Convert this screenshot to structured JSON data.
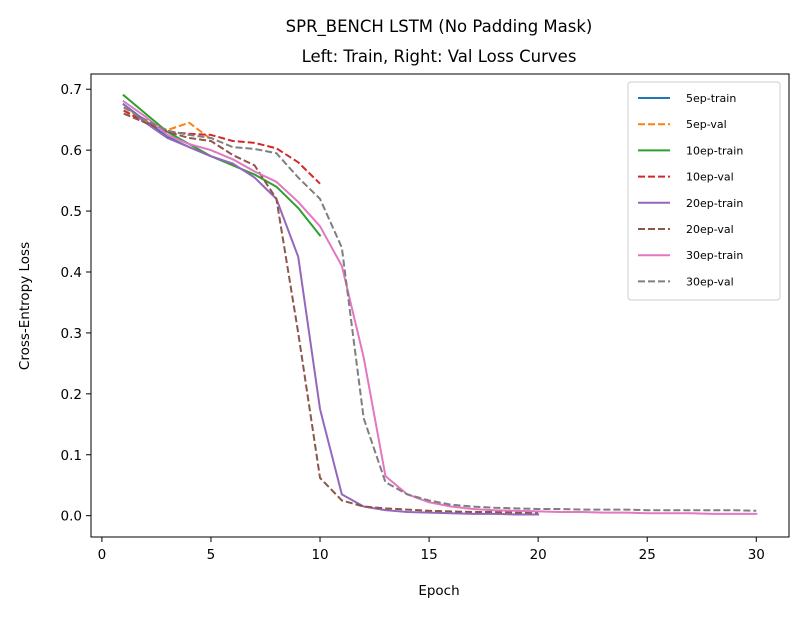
{
  "chart_data": {
    "type": "line",
    "title": "SPR_BENCH LSTM (No Padding Mask)",
    "subtitle": "Left: Train, Right: Val Loss Curves",
    "xlabel": "Epoch",
    "ylabel": "Cross-Entropy Loss",
    "xlim": [
      -0.5,
      31.5
    ],
    "ylim": [
      -0.035,
      0.725
    ],
    "xticks": [
      0,
      5,
      10,
      15,
      20,
      25,
      30
    ],
    "yticks": [
      0.0,
      0.1,
      0.2,
      0.3,
      0.4,
      0.5,
      0.6,
      0.7
    ],
    "xtick_labels": [
      "0",
      "5",
      "10",
      "15",
      "20",
      "25",
      "30"
    ],
    "ytick_labels": [
      "0.0",
      "0.1",
      "0.2",
      "0.3",
      "0.4",
      "0.5",
      "0.6",
      "0.7"
    ],
    "grid": false,
    "legend_position": "top-right",
    "series": [
      {
        "name": "5ep-train",
        "color": "#1f77b4",
        "dash": "solid",
        "x": [
          1,
          2,
          3,
          4,
          5
        ],
        "y": [
          0.675,
          0.648,
          0.622,
          0.605,
          0.59
        ]
      },
      {
        "name": "5ep-val",
        "color": "#ff7f0e",
        "dash": "dashed",
        "x": [
          1,
          2,
          3,
          4,
          5
        ],
        "y": [
          0.665,
          0.648,
          0.633,
          0.645,
          0.618
        ]
      },
      {
        "name": "10ep-train",
        "color": "#2ca02c",
        "dash": "solid",
        "x": [
          1,
          2,
          3,
          4,
          5,
          6,
          7,
          8,
          9,
          10
        ],
        "y": [
          0.69,
          0.66,
          0.63,
          0.61,
          0.59,
          0.575,
          0.56,
          0.54,
          0.505,
          0.46
        ]
      },
      {
        "name": "10ep-val",
        "color": "#d62728",
        "dash": "dashed",
        "x": [
          1,
          2,
          3,
          4,
          5,
          6,
          7,
          8,
          9,
          10
        ],
        "y": [
          0.665,
          0.645,
          0.63,
          0.627,
          0.625,
          0.615,
          0.612,
          0.603,
          0.58,
          0.545
        ]
      },
      {
        "name": "20ep-train",
        "color": "#9467bd",
        "dash": "solid",
        "x": [
          1,
          2,
          3,
          4,
          5,
          6,
          7,
          8,
          9,
          10,
          11,
          12,
          13,
          14,
          15,
          16,
          17,
          18,
          19,
          20
        ],
        "y": [
          0.675,
          0.645,
          0.62,
          0.605,
          0.59,
          0.578,
          0.555,
          0.52,
          0.425,
          0.175,
          0.035,
          0.015,
          0.009,
          0.006,
          0.005,
          0.004,
          0.003,
          0.003,
          0.002,
          0.002
        ]
      },
      {
        "name": "20ep-val",
        "color": "#8c564b",
        "dash": "dashed",
        "x": [
          1,
          2,
          3,
          4,
          5,
          6,
          7,
          8,
          9,
          10,
          11,
          12,
          13,
          14,
          15,
          16,
          17,
          18,
          19,
          20
        ],
        "y": [
          0.66,
          0.645,
          0.63,
          0.62,
          0.615,
          0.592,
          0.575,
          0.52,
          0.3,
          0.062,
          0.025,
          0.015,
          0.012,
          0.01,
          0.008,
          0.007,
          0.006,
          0.006,
          0.005,
          0.005
        ]
      },
      {
        "name": "30ep-train",
        "color": "#e377c2",
        "dash": "solid",
        "x": [
          1,
          2,
          3,
          4,
          5,
          6,
          7,
          8,
          9,
          10,
          11,
          12,
          13,
          14,
          15,
          16,
          17,
          18,
          19,
          20,
          21,
          22,
          23,
          24,
          25,
          26,
          27,
          28,
          29,
          30
        ],
        "y": [
          0.68,
          0.655,
          0.625,
          0.61,
          0.6,
          0.585,
          0.565,
          0.548,
          0.515,
          0.475,
          0.41,
          0.26,
          0.065,
          0.035,
          0.022,
          0.015,
          0.011,
          0.009,
          0.008,
          0.007,
          0.006,
          0.006,
          0.005,
          0.005,
          0.004,
          0.004,
          0.004,
          0.003,
          0.003,
          0.003
        ]
      },
      {
        "name": "30ep-val",
        "color": "#7f7f7f",
        "dash": "dashed",
        "x": [
          1,
          2,
          3,
          4,
          5,
          6,
          7,
          8,
          9,
          10,
          11,
          12,
          13,
          14,
          15,
          16,
          17,
          18,
          19,
          20,
          21,
          22,
          23,
          24,
          25,
          26,
          27,
          28,
          29,
          30
        ],
        "y": [
          0.67,
          0.65,
          0.632,
          0.625,
          0.62,
          0.605,
          0.602,
          0.595,
          0.555,
          0.52,
          0.44,
          0.16,
          0.055,
          0.035,
          0.025,
          0.018,
          0.015,
          0.013,
          0.012,
          0.011,
          0.011,
          0.01,
          0.01,
          0.01,
          0.009,
          0.009,
          0.009,
          0.009,
          0.009,
          0.008
        ]
      }
    ]
  }
}
